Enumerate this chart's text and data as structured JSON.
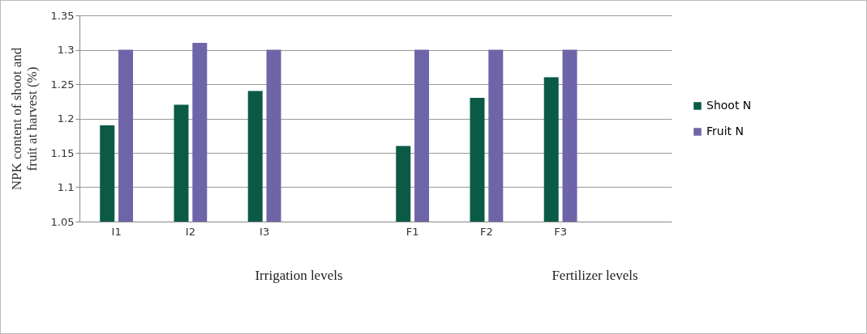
{
  "chart_data": {
    "type": "bar",
    "ylabel": "NPK content of shoot and fruit at harvest (%)",
    "categories": [
      "I1",
      "I2",
      "I3",
      null,
      "F1",
      "F2",
      "F3",
      null
    ],
    "series": [
      {
        "name": "Shoot N",
        "color": "#0b5a46",
        "values": [
          1.19,
          1.22,
          1.24,
          null,
          1.16,
          1.23,
          1.26,
          null
        ]
      },
      {
        "name": "Fruit N",
        "color": "#6e65a8",
        "values": [
          1.3,
          1.31,
          1.3,
          null,
          1.3,
          1.3,
          1.3,
          null
        ]
      }
    ],
    "ylim": [
      1.05,
      1.35
    ],
    "yticks": [
      1.05,
      1.1,
      1.15,
      1.2,
      1.25,
      1.3,
      1.35
    ],
    "grid": "y",
    "legend": "right",
    "annotations": [
      "Irrigation levels",
      "Fertilizer levels"
    ]
  }
}
